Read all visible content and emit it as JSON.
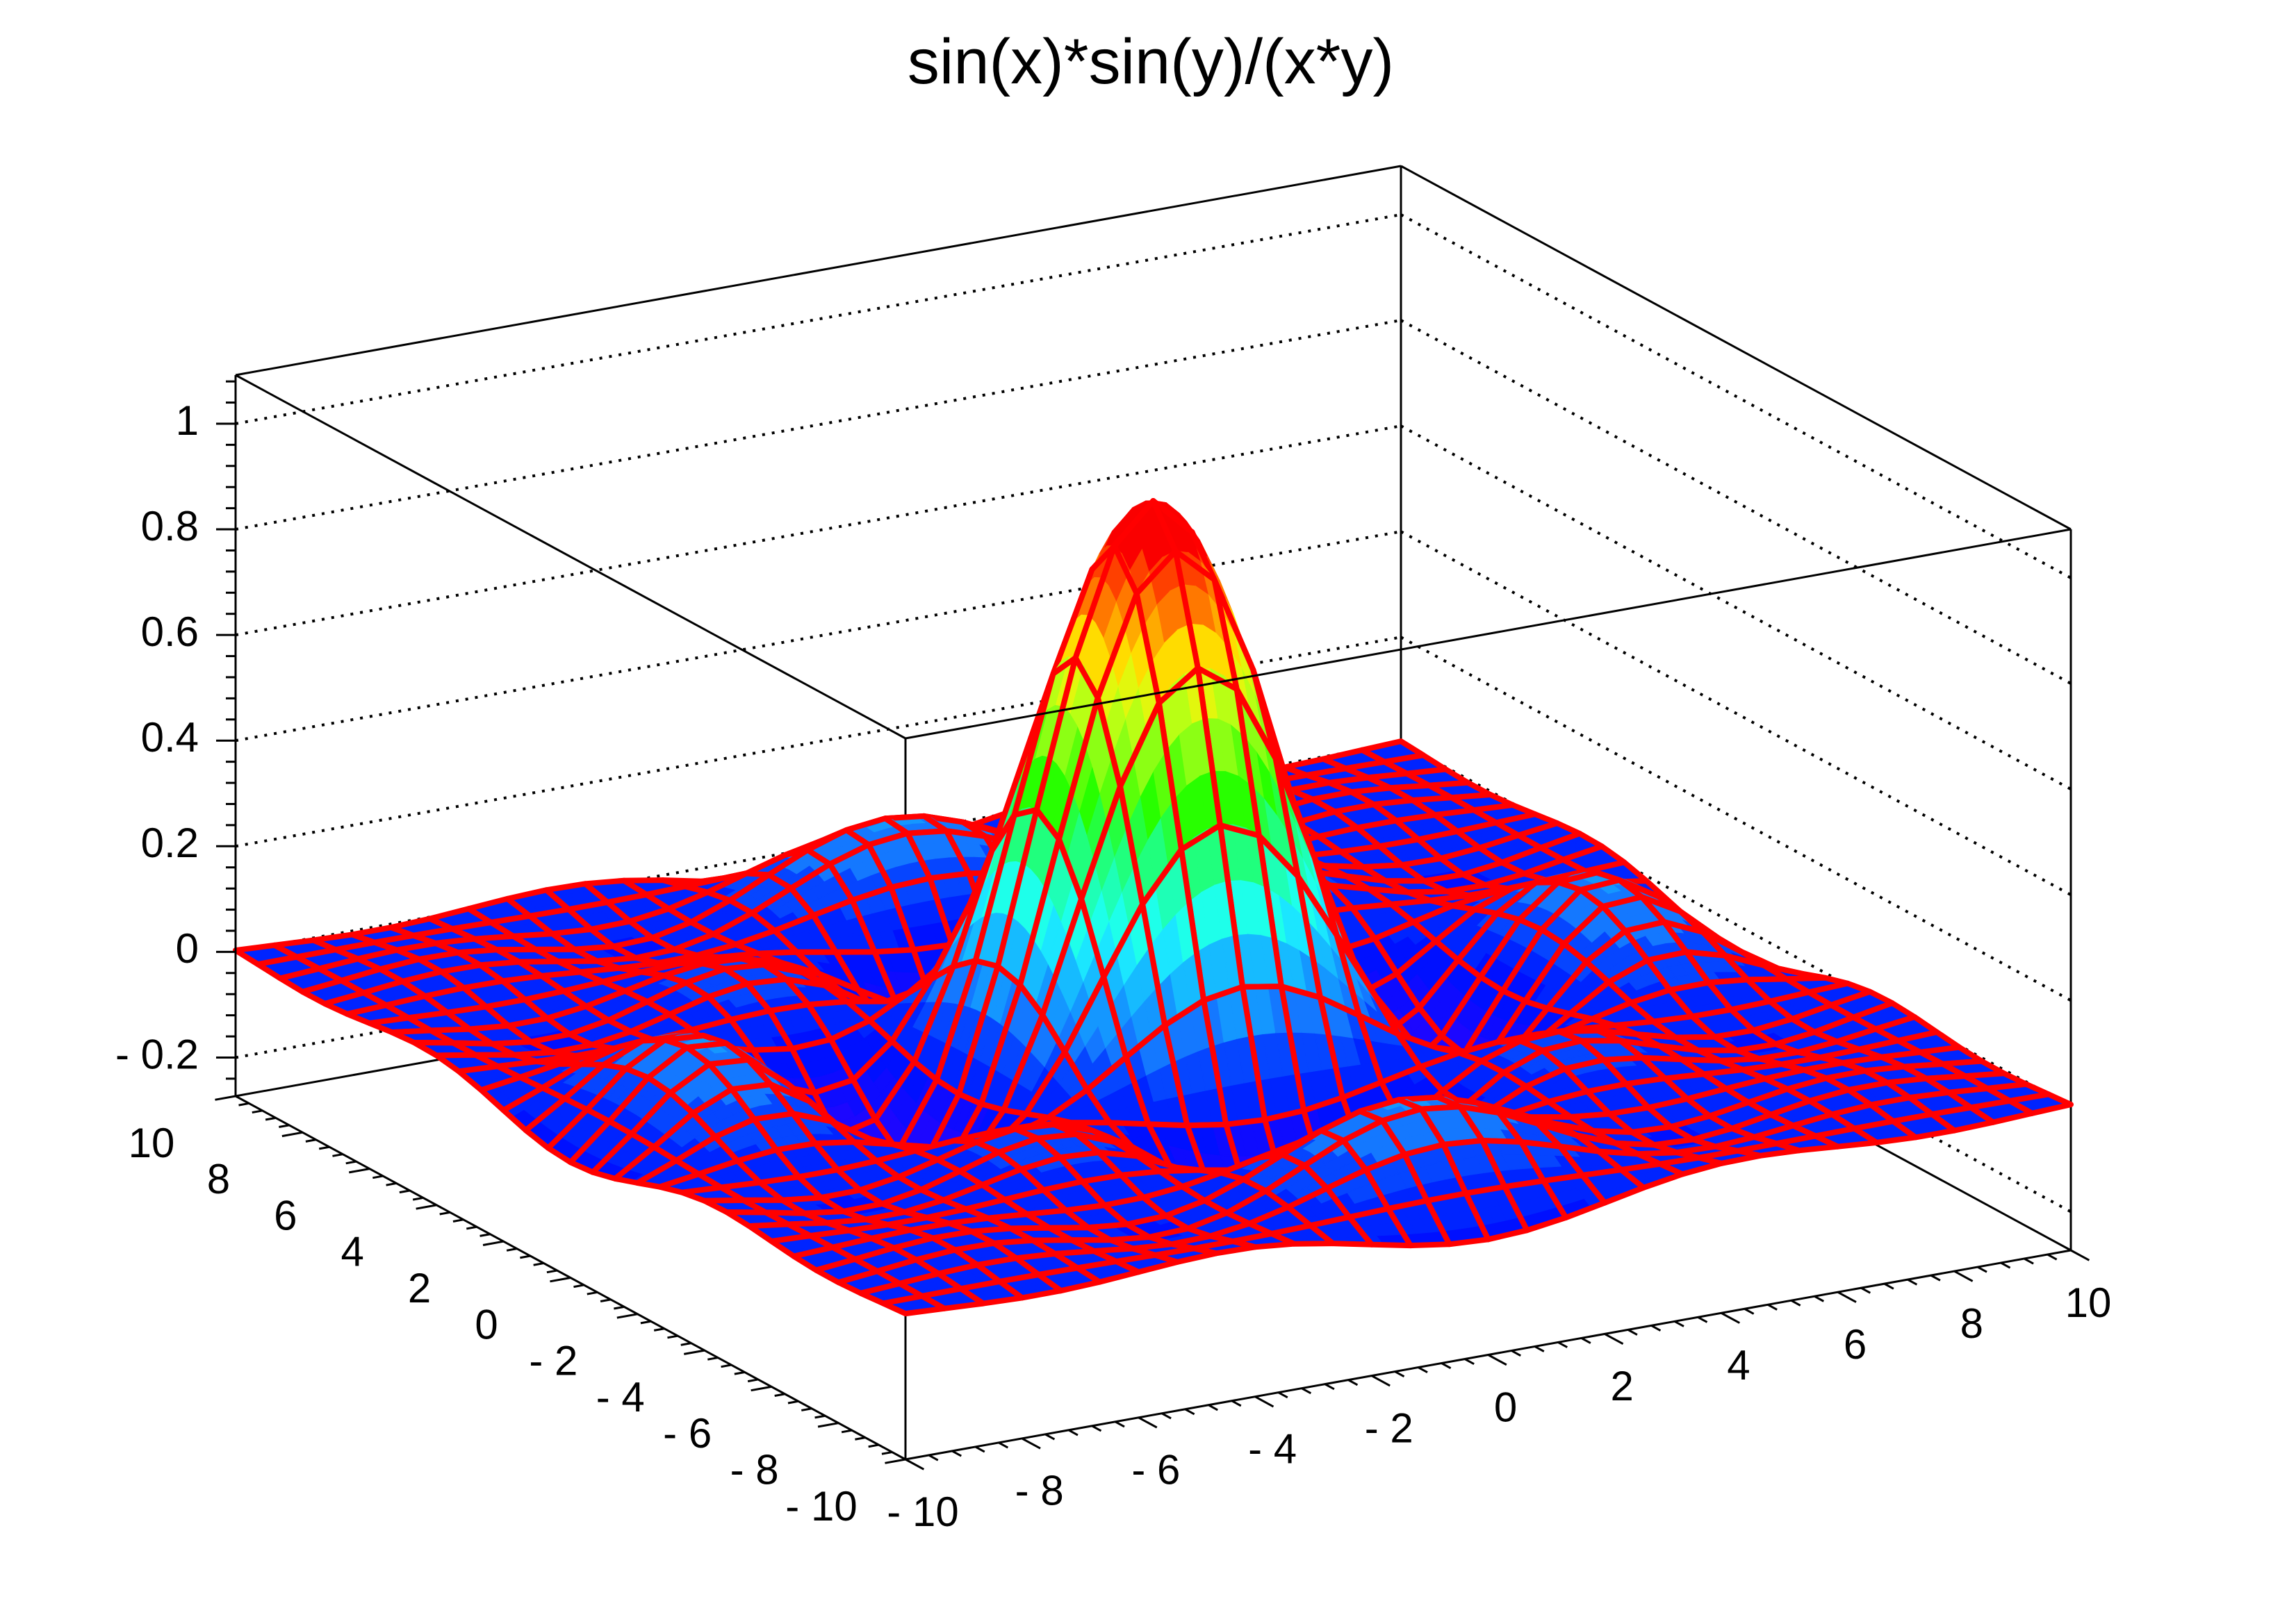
{
  "chart_data": {
    "type": "surface",
    "title": "sin(x)*sin(y)/(x*y)",
    "function": "sin(x)*sin(y)/(x*y)",
    "grid_points": 31,
    "xlim": [
      -10,
      10
    ],
    "ylim": [
      -10,
      10
    ],
    "zlim": [
      -0.273,
      1.092
    ],
    "x_ticks": [
      -10,
      -8,
      -6,
      -4,
      -2,
      0,
      2,
      4,
      6,
      8,
      10
    ],
    "x_tick_labels": [
      "- 10",
      "- 8",
      "- 6",
      "- 4",
      "- 2",
      "0",
      "2",
      "4",
      "6",
      "8",
      "10"
    ],
    "y_ticks": [
      -10,
      -8,
      -6,
      -4,
      -2,
      0,
      2,
      4,
      6,
      8,
      10
    ],
    "y_tick_labels": [
      "- 10",
      "- 8",
      "- 6",
      "- 4",
      "- 2",
      "0",
      "2",
      "4",
      "6",
      "8",
      "10"
    ],
    "z_ticks": [
      -0.2,
      0,
      0.2,
      0.4,
      0.6,
      0.8,
      1
    ],
    "z_tick_labels": [
      "- 0.2",
      "0",
      "0.2",
      "0.4",
      "0.6",
      "0.8",
      "1"
    ],
    "grid": true,
    "mesh_color": "#ff0000",
    "palette": "rainbow (blue → cyan → green → yellow → red by height)"
  }
}
